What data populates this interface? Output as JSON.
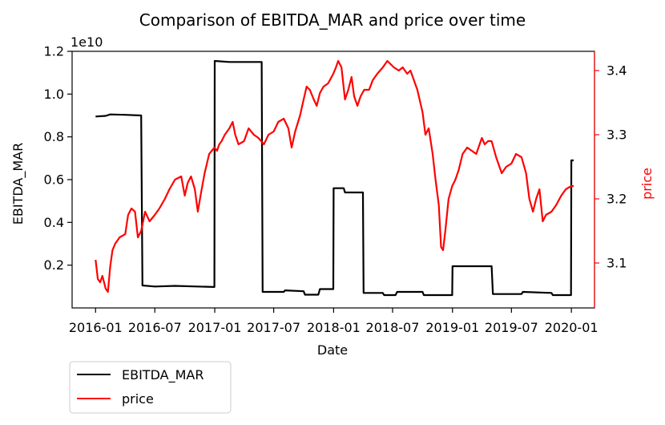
{
  "chart_data": {
    "type": "line",
    "title": "Comparison of EBITDA_MAR and price over time",
    "xlabel": "Date",
    "ylabel_left": "EBITDA_MAR",
    "ylabel_right": "price",
    "y_left_offset_label": "1e10",
    "x_ticks": [
      "2016-01",
      "2016-07",
      "2017-01",
      "2017-07",
      "2018-01",
      "2018-07",
      "2019-01",
      "2019-07",
      "2020-01"
    ],
    "y_left_ticks": [
      "0.2",
      "0.4",
      "0.6",
      "0.8",
      "1.0",
      "1.2"
    ],
    "y_right_ticks": [
      "3.1",
      "3.2",
      "3.3",
      "3.4"
    ],
    "x_range": [
      "2015-10-21",
      "2020-03-12"
    ],
    "y_left_range": [
      0.0,
      1.2
    ],
    "y_right_range": [
      3.03,
      3.43
    ],
    "legend_position": "below-left",
    "grid": false,
    "series": [
      {
        "name": "EBITDA_MAR",
        "axis": "left",
        "color": "#000000",
        "points": [
          [
            "2016-01-01",
            0.895
          ],
          [
            "2016-02-01",
            0.898
          ],
          [
            "2016-02-15",
            0.905
          ],
          [
            "2016-04-01",
            0.903
          ],
          [
            "2016-05-20",
            0.9
          ],
          [
            "2016-05-24",
            0.105
          ],
          [
            "2016-07-01",
            0.1
          ],
          [
            "2016-09-01",
            0.103
          ],
          [
            "2016-12-31",
            0.098
          ],
          [
            "2017-01-01",
            1.155
          ],
          [
            "2017-02-15",
            1.15
          ],
          [
            "2017-05-01",
            1.15
          ],
          [
            "2017-05-25",
            1.15
          ],
          [
            "2017-05-28",
            0.075
          ],
          [
            "2017-08-01",
            0.075
          ],
          [
            "2017-08-05",
            0.082
          ],
          [
            "2017-10-01",
            0.078
          ],
          [
            "2017-10-05",
            0.062
          ],
          [
            "2017-11-15",
            0.062
          ],
          [
            "2017-11-20",
            0.088
          ],
          [
            "2017-12-31",
            0.088
          ],
          [
            "2018-01-01",
            0.56
          ],
          [
            "2018-02-01",
            0.56
          ],
          [
            "2018-02-05",
            0.54
          ],
          [
            "2018-04-01",
            0.54
          ],
          [
            "2018-04-03",
            0.07
          ],
          [
            "2018-06-01",
            0.07
          ],
          [
            "2018-06-05",
            0.06
          ],
          [
            "2018-07-10",
            0.06
          ],
          [
            "2018-07-15",
            0.075
          ],
          [
            "2018-10-01",
            0.075
          ],
          [
            "2018-10-05",
            0.06
          ],
          [
            "2018-12-31",
            0.06
          ],
          [
            "2019-01-01",
            0.195
          ],
          [
            "2019-03-01",
            0.195
          ],
          [
            "2019-05-01",
            0.195
          ],
          [
            "2019-05-05",
            0.065
          ],
          [
            "2019-08-01",
            0.065
          ],
          [
            "2019-08-05",
            0.075
          ],
          [
            "2019-11-01",
            0.07
          ],
          [
            "2019-11-05",
            0.06
          ],
          [
            "2019-12-31",
            0.06
          ],
          [
            "2020-01-01",
            0.69
          ],
          [
            "2020-01-08",
            0.69
          ]
        ]
      },
      {
        "name": "price",
        "axis": "right",
        "color": "#ff0000",
        "points": [
          [
            "2016-01-01",
            3.105
          ],
          [
            "2016-01-08",
            3.075
          ],
          [
            "2016-01-15",
            3.07
          ],
          [
            "2016-01-22",
            3.08
          ],
          [
            "2016-02-01",
            3.06
          ],
          [
            "2016-02-08",
            3.055
          ],
          [
            "2016-02-15",
            3.095
          ],
          [
            "2016-02-22",
            3.12
          ],
          [
            "2016-03-01",
            3.13
          ],
          [
            "2016-03-15",
            3.14
          ],
          [
            "2016-04-01",
            3.145
          ],
          [
            "2016-04-10",
            3.175
          ],
          [
            "2016-04-20",
            3.185
          ],
          [
            "2016-05-01",
            3.18
          ],
          [
            "2016-05-10",
            3.14
          ],
          [
            "2016-05-20",
            3.15
          ],
          [
            "2016-06-01",
            3.18
          ],
          [
            "2016-06-15",
            3.165
          ],
          [
            "2016-07-01",
            3.175
          ],
          [
            "2016-07-15",
            3.185
          ],
          [
            "2016-08-01",
            3.2
          ],
          [
            "2016-08-15",
            3.215
          ],
          [
            "2016-09-01",
            3.23
          ],
          [
            "2016-09-20",
            3.235
          ],
          [
            "2016-10-01",
            3.205
          ],
          [
            "2016-10-10",
            3.225
          ],
          [
            "2016-10-20",
            3.235
          ],
          [
            "2016-11-01",
            3.215
          ],
          [
            "2016-11-10",
            3.18
          ],
          [
            "2016-11-20",
            3.21
          ],
          [
            "2016-12-01",
            3.24
          ],
          [
            "2016-12-15",
            3.27
          ],
          [
            "2016-12-31",
            3.28
          ],
          [
            "2017-01-08",
            3.275
          ],
          [
            "2017-01-15",
            3.285
          ],
          [
            "2017-01-22",
            3.29
          ],
          [
            "2017-02-01",
            3.3
          ],
          [
            "2017-02-15",
            3.31
          ],
          [
            "2017-02-25",
            3.32
          ],
          [
            "2017-03-05",
            3.3
          ],
          [
            "2017-03-15",
            3.285
          ],
          [
            "2017-04-01",
            3.29
          ],
          [
            "2017-04-15",
            3.31
          ],
          [
            "2017-05-01",
            3.3
          ],
          [
            "2017-05-15",
            3.295
          ],
          [
            "2017-06-01",
            3.285
          ],
          [
            "2017-06-15",
            3.3
          ],
          [
            "2017-07-01",
            3.305
          ],
          [
            "2017-07-15",
            3.32
          ],
          [
            "2017-08-01",
            3.325
          ],
          [
            "2017-08-15",
            3.31
          ],
          [
            "2017-08-25",
            3.28
          ],
          [
            "2017-09-05",
            3.305
          ],
          [
            "2017-09-20",
            3.33
          ],
          [
            "2017-10-01",
            3.355
          ],
          [
            "2017-10-10",
            3.375
          ],
          [
            "2017-10-20",
            3.37
          ],
          [
            "2017-11-01",
            3.355
          ],
          [
            "2017-11-10",
            3.345
          ],
          [
            "2017-11-20",
            3.365
          ],
          [
            "2017-12-01",
            3.375
          ],
          [
            "2017-12-15",
            3.38
          ],
          [
            "2017-12-31",
            3.395
          ],
          [
            "2018-01-08",
            3.405
          ],
          [
            "2018-01-15",
            3.415
          ],
          [
            "2018-01-25",
            3.405
          ],
          [
            "2018-02-05",
            3.355
          ],
          [
            "2018-02-15",
            3.37
          ],
          [
            "2018-02-25",
            3.39
          ],
          [
            "2018-03-05",
            3.36
          ],
          [
            "2018-03-15",
            3.345
          ],
          [
            "2018-03-25",
            3.36
          ],
          [
            "2018-04-05",
            3.37
          ],
          [
            "2018-04-20",
            3.37
          ],
          [
            "2018-05-01",
            3.385
          ],
          [
            "2018-05-15",
            3.395
          ],
          [
            "2018-06-01",
            3.405
          ],
          [
            "2018-06-15",
            3.415
          ],
          [
            "2018-06-25",
            3.41
          ],
          [
            "2018-07-05",
            3.405
          ],
          [
            "2018-07-20",
            3.4
          ],
          [
            "2018-08-01",
            3.405
          ],
          [
            "2018-08-15",
            3.395
          ],
          [
            "2018-08-25",
            3.4
          ],
          [
            "2018-09-01",
            3.39
          ],
          [
            "2018-09-15",
            3.37
          ],
          [
            "2018-10-01",
            3.335
          ],
          [
            "2018-10-10",
            3.3
          ],
          [
            "2018-10-20",
            3.31
          ],
          [
            "2018-11-01",
            3.27
          ],
          [
            "2018-11-10",
            3.23
          ],
          [
            "2018-11-20",
            3.19
          ],
          [
            "2018-11-27",
            3.125
          ],
          [
            "2018-12-03",
            3.12
          ],
          [
            "2018-12-10",
            3.15
          ],
          [
            "2018-12-20",
            3.2
          ],
          [
            "2018-12-31",
            3.22
          ],
          [
            "2019-01-10",
            3.23
          ],
          [
            "2019-01-20",
            3.245
          ],
          [
            "2019-02-01",
            3.27
          ],
          [
            "2019-02-15",
            3.28
          ],
          [
            "2019-03-01",
            3.275
          ],
          [
            "2019-03-15",
            3.27
          ],
          [
            "2019-04-01",
            3.295
          ],
          [
            "2019-04-10",
            3.285
          ],
          [
            "2019-04-20",
            3.29
          ],
          [
            "2019-05-01",
            3.29
          ],
          [
            "2019-05-15",
            3.265
          ],
          [
            "2019-06-01",
            3.24
          ],
          [
            "2019-06-15",
            3.25
          ],
          [
            "2019-07-01",
            3.255
          ],
          [
            "2019-07-15",
            3.27
          ],
          [
            "2019-08-01",
            3.265
          ],
          [
            "2019-08-15",
            3.24
          ],
          [
            "2019-08-25",
            3.2
          ],
          [
            "2019-09-05",
            3.18
          ],
          [
            "2019-09-15",
            3.2
          ],
          [
            "2019-09-25",
            3.215
          ],
          [
            "2019-10-05",
            3.165
          ],
          [
            "2019-10-15",
            3.175
          ],
          [
            "2019-11-01",
            3.18
          ],
          [
            "2019-11-15",
            3.19
          ],
          [
            "2019-12-01",
            3.205
          ],
          [
            "2019-12-15",
            3.215
          ],
          [
            "2020-01-01",
            3.22
          ],
          [
            "2020-01-08",
            3.22
          ]
        ]
      }
    ]
  }
}
